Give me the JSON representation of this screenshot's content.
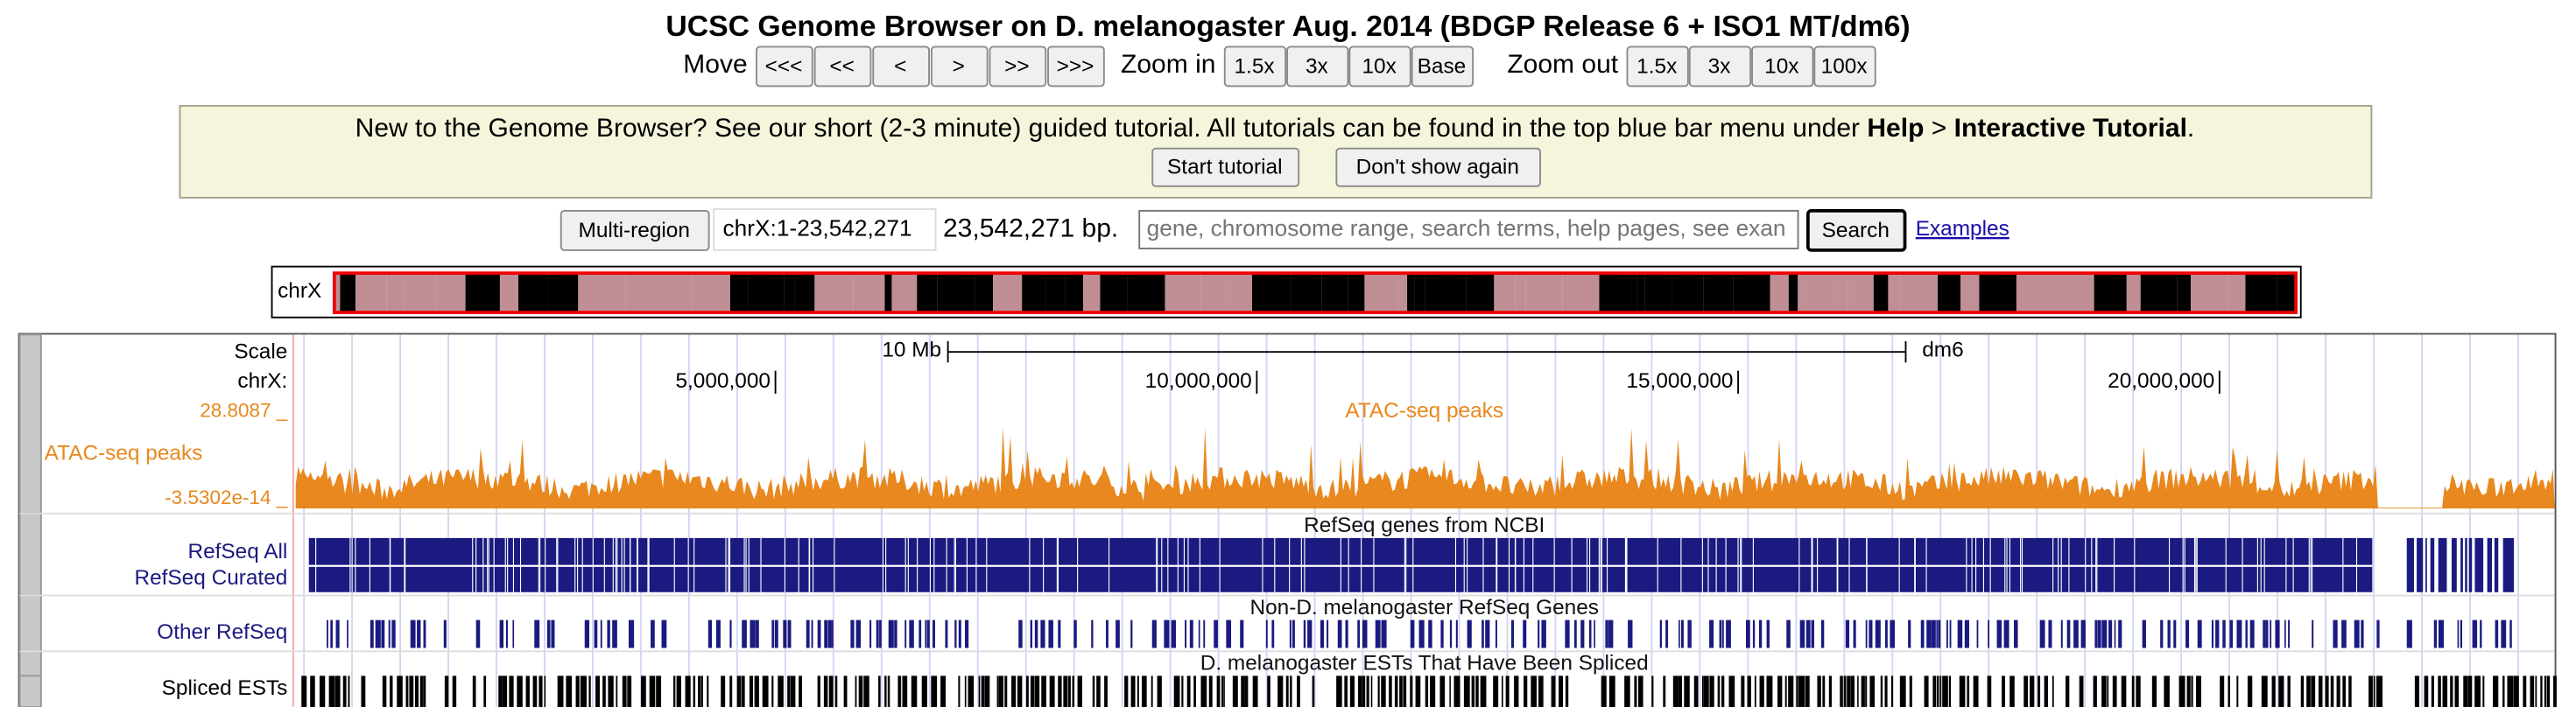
{
  "header": {
    "title": "UCSC Genome Browser on D. melanogaster Aug. 2014 (BDGP Release 6 + ISO1 MT/dm6)"
  },
  "nav": {
    "move_label": "Move",
    "move_buttons": [
      "<<<",
      "<<",
      "<",
      ">",
      ">>",
      ">>>"
    ],
    "zoom_in_label": "Zoom in",
    "zoom_in_buttons": [
      "1.5x",
      "3x",
      "10x",
      "Base"
    ],
    "zoom_out_label": "Zoom out",
    "zoom_out_buttons": [
      "1.5x",
      "3x",
      "10x",
      "100x"
    ]
  },
  "banner": {
    "text": "New to the Genome Browser? See our short (2-3 minute) guided tutorial. All tutorials can be found in the top blue bar menu under ",
    "help": "Help",
    "separator": " > ",
    "tutorial": "Interactive Tutorial",
    "end": ".",
    "start_button": "Start tutorial",
    "hide_button": "Don't show again"
  },
  "position": {
    "multi_region": "Multi-region",
    "range": "chrX:1-23,542,271",
    "size": "23,542,271 bp.",
    "search_placeholder": "gene, chromosome range, search terms, help pages, see exan",
    "search_button": "Search",
    "examples": "Examples"
  },
  "ideogram": {
    "label": "chrX"
  },
  "tracks": {
    "scale_label": "Scale",
    "chrom_label": "chrX:",
    "scale_bar": "10 Mb",
    "assembly": "dm6",
    "ruler_ticks": [
      "5,000,000",
      "10,000,000",
      "15,000,000",
      "20,000,000"
    ],
    "atac": {
      "max": "28.8087 _",
      "min": "-3.5302e-14 _",
      "title": "ATAC-seq peaks",
      "label": "ATAC-seq peaks"
    },
    "refseq": {
      "title": "RefSeq genes from NCBI",
      "labels": [
        "RefSeq All",
        "RefSeq Curated"
      ]
    },
    "other": {
      "title": "Non-D. melanogaster RefSeq Genes",
      "label": "Other RefSeq"
    },
    "est": {
      "title": "D. melanogaster ESTs That Have Been Spliced",
      "label": "Spliced ESTs"
    }
  }
}
